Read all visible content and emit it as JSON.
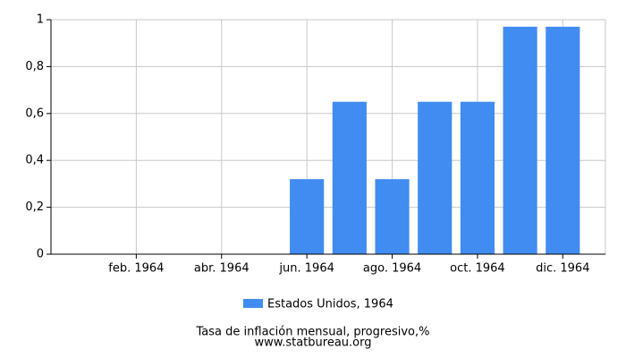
{
  "chart_data": {
    "type": "bar",
    "categories": [
      null,
      "feb. 1964",
      null,
      "abr. 1964",
      null,
      "jun. 1964",
      null,
      "ago. 1964",
      null,
      "oct. 1964",
      null,
      "dic. 1964"
    ],
    "series": [
      {
        "name": "Estados Unidos, 1964",
        "color": "#418cf0",
        "values": [
          0,
          0,
          0,
          0,
          0,
          0.32,
          0.65,
          0.32,
          0.65,
          0.65,
          0.97,
          0.97
        ]
      }
    ],
    "ylim": [
      0,
      1
    ],
    "yticks": [
      {
        "value": 0,
        "label": "0"
      },
      {
        "value": 0.2,
        "label": "0,2"
      },
      {
        "value": 0.4,
        "label": "0,4"
      },
      {
        "value": 0.6,
        "label": "0,6"
      },
      {
        "value": 0.8,
        "label": "0,8"
      },
      {
        "value": 1,
        "label": "1"
      }
    ],
    "grid": true,
    "xlabel": "Tasa de inflación mensual, progresivo,%",
    "source": "www.statbureau.org"
  }
}
